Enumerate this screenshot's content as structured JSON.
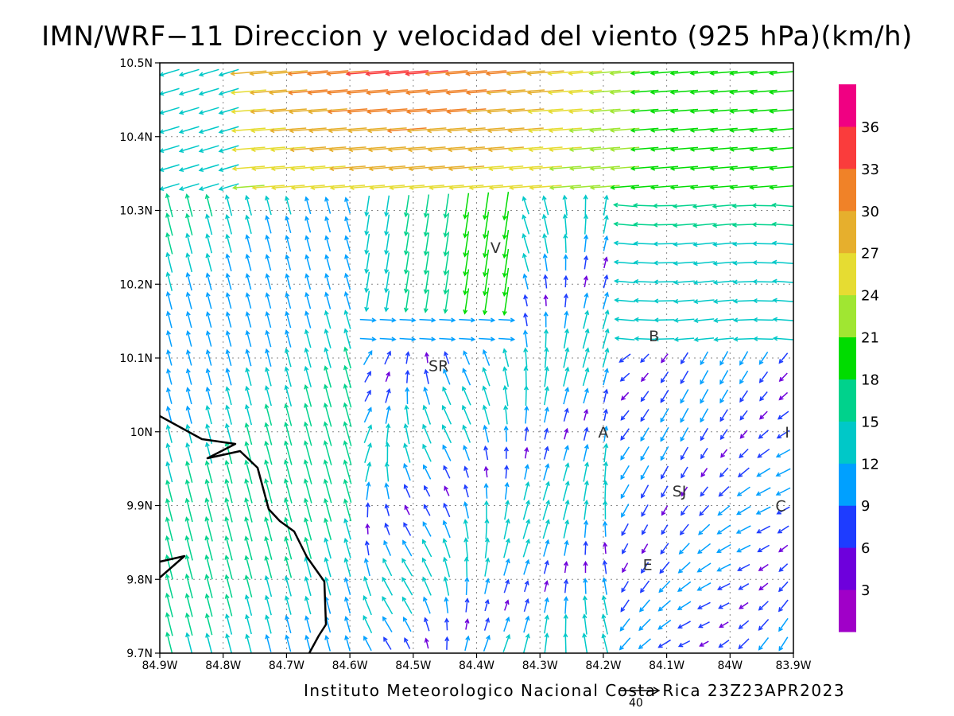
{
  "title": "IMN/WRF−11 Direccion y velocidad del viento (925 hPa)(km/h)",
  "footer": "Instituto Meteorologico Nacional Costa Rica 23Z23APR2023",
  "reference_vector": {
    "label": "40",
    "value": 40
  },
  "map": {
    "lon_range": [
      -84.9,
      -83.9
    ],
    "lat_range": [
      9.7,
      10.5
    ],
    "x_ticks": [
      "84.9W",
      "84.8W",
      "84.7W",
      "84.6W",
      "84.5W",
      "84.4W",
      "84.3W",
      "84.2W",
      "84.1W",
      "84W",
      "83.9W"
    ],
    "y_ticks": [
      "9.7N",
      "9.8N",
      "9.9N",
      "10N",
      "10.1N",
      "10.2N",
      "10.3N",
      "10.4N",
      "10.5N"
    ],
    "grid": "dotted",
    "places": [
      {
        "name": "V",
        "lon": -84.37,
        "lat": 10.25
      },
      {
        "name": "B",
        "lon": -84.12,
        "lat": 10.13
      },
      {
        "name": "SR",
        "lon": -84.46,
        "lat": 10.09
      },
      {
        "name": "A",
        "lon": -84.2,
        "lat": 10.0
      },
      {
        "name": "I",
        "lon": -83.91,
        "lat": 10.0
      },
      {
        "name": "SJ",
        "lon": -84.08,
        "lat": 9.92
      },
      {
        "name": "C",
        "lon": -83.92,
        "lat": 9.9
      },
      {
        "name": "E",
        "lon": -84.13,
        "lat": 9.82
      }
    ]
  },
  "colorbar": {
    "labels": [
      "3",
      "6",
      "9",
      "12",
      "15",
      "18",
      "21",
      "24",
      "27",
      "30",
      "33",
      "36"
    ],
    "colors": [
      "#a000c8",
      "#6e00dc",
      "#1e3cff",
      "#00a0ff",
      "#00c8c8",
      "#00d28c",
      "#00dc00",
      "#a0e632",
      "#e6dc32",
      "#e6af2d",
      "#f08228",
      "#fa3c3c",
      "#f00082"
    ]
  }
}
